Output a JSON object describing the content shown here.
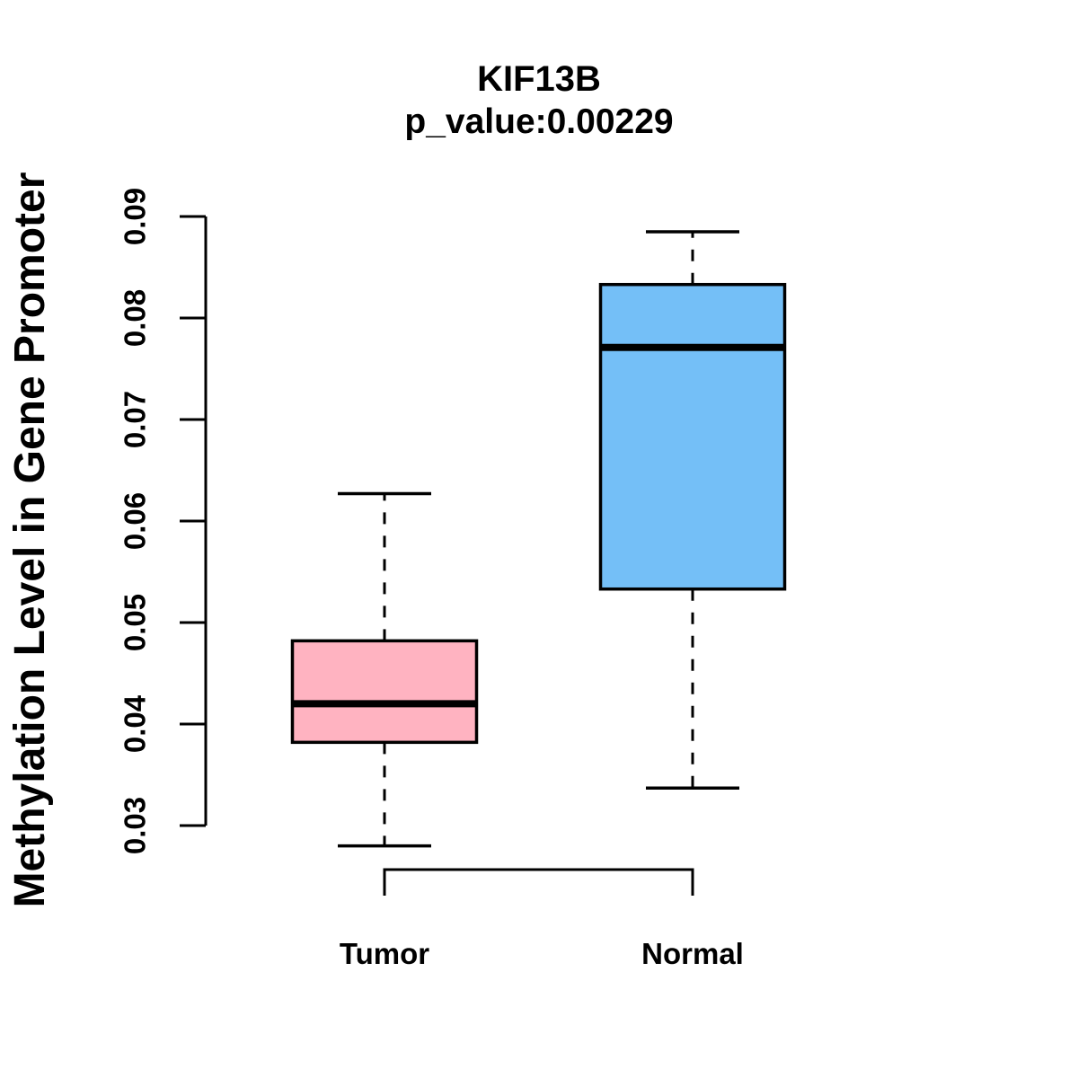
{
  "header": {
    "title": "KIF13B",
    "subtitle": "p_value:0.00229"
  },
  "chart_data": {
    "type": "boxplot",
    "title": "KIF13B",
    "subtitle": "p_value:0.00229",
    "ylabel": "Methylation Level in Gene Promoter",
    "xlabel": "",
    "ylim": [
      0.03,
      0.09
    ],
    "yticks": [
      0.09,
      0.08,
      0.07,
      0.06,
      0.05,
      0.04,
      0.03
    ],
    "ytick_labels": [
      "0.09",
      "0.08",
      "0.07",
      "0.06",
      "0.05",
      "0.04",
      "0.03"
    ],
    "categories": [
      "Tumor",
      "Normal"
    ],
    "series": [
      {
        "name": "Tumor",
        "fill_color": "#FFB3C1",
        "whisker_low": 0.028,
        "q1": 0.0382,
        "median": 0.042,
        "q3": 0.0482,
        "whisker_high": 0.0627
      },
      {
        "name": "Normal",
        "fill_color": "#74BFF7",
        "whisker_low": 0.0337,
        "q1": 0.0533,
        "median": 0.0771,
        "q3": 0.0833,
        "whisker_high": 0.0885
      }
    ],
    "grid": false,
    "legend": false,
    "annotations": [
      {
        "type": "comparison-bracket",
        "between": [
          "Tumor",
          "Normal"
        ]
      }
    ],
    "stroke_color": "#000000",
    "background": "#FFFFFF"
  }
}
